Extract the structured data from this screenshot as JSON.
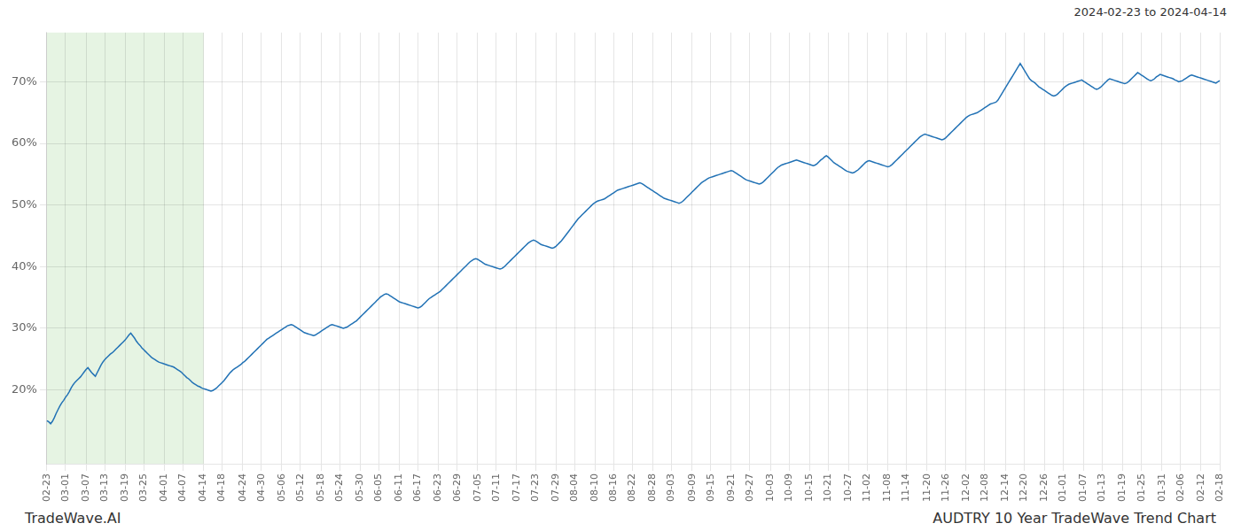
{
  "chart_data": {
    "type": "line",
    "title": "AUDTRY 10 Year TradeWave Trend Chart",
    "subtitle": "2024-02-23 to 2024-04-14",
    "annotations": [
      "TradeWave.AI"
    ],
    "color": "#2272b5",
    "grid": true,
    "ylim": [
      8,
      78
    ],
    "yticks": [
      {
        "value": 20,
        "label": "20%"
      },
      {
        "value": 30,
        "label": "30%"
      },
      {
        "value": 40,
        "label": "40%"
      },
      {
        "value": 50,
        "label": "50%"
      },
      {
        "value": 60,
        "label": "60%"
      },
      {
        "value": 70,
        "label": "70%"
      }
    ],
    "shaded_range": [
      "02-23",
      "04-14"
    ],
    "categories": [
      "02-23",
      null,
      null,
      null,
      null,
      null,
      null,
      null,
      null,
      null,
      "03-01",
      null,
      null,
      null,
      null,
      null,
      null,
      null,
      null,
      null,
      null,
      "03-07",
      null,
      null,
      null,
      null,
      null,
      null,
      null,
      null,
      null,
      "03-13",
      null,
      null,
      null,
      null,
      null,
      null,
      null,
      null,
      null,
      null,
      "03-19",
      null,
      null,
      null,
      null,
      null,
      null,
      null,
      null,
      null,
      "03-25",
      null,
      null,
      null,
      null,
      null,
      null,
      null,
      null,
      null,
      null,
      "04-01",
      null,
      null,
      null,
      null,
      null,
      null,
      null,
      null,
      null,
      "04-07",
      null,
      null,
      null,
      null,
      null,
      null,
      null,
      null,
      null,
      null,
      "04-14",
      null,
      null,
      null,
      null,
      null,
      null,
      null,
      null,
      null,
      "04-18",
      null,
      null,
      null,
      null,
      null,
      null,
      null,
      null,
      null,
      null,
      "04-24",
      null,
      null,
      null,
      null,
      null,
      null,
      null,
      null,
      null,
      "04-30",
      null,
      null,
      null,
      null,
      null,
      null,
      null,
      null,
      null,
      null,
      "05-06",
      null,
      null,
      null,
      null,
      null,
      null,
      null,
      null,
      null,
      "05-12",
      null,
      null,
      null,
      null,
      null,
      null,
      null,
      null,
      null,
      null,
      "05-18",
      null,
      null,
      null,
      null,
      null,
      null,
      null,
      null,
      null,
      "05-24",
      null,
      null,
      null,
      null,
      null,
      null,
      null,
      null,
      null,
      null,
      "05-30",
      null,
      null,
      null,
      null,
      null,
      null,
      null,
      null,
      null,
      "06-05",
      null,
      null,
      null,
      null,
      null,
      null,
      null,
      null,
      null,
      null,
      "06-11",
      null,
      null,
      null,
      null,
      null,
      null,
      null,
      null,
      null,
      "06-17",
      null,
      null,
      null,
      null,
      null,
      null,
      null,
      null,
      null,
      null,
      "06-23",
      null,
      null,
      null,
      null,
      null,
      null,
      null,
      null,
      null,
      "06-29",
      null,
      null,
      null,
      null,
      null,
      null,
      null,
      null,
      null,
      null,
      "07-05",
      null,
      null,
      null,
      null,
      null,
      null,
      null,
      null,
      null,
      "07-11",
      null,
      null,
      null,
      null,
      null,
      null,
      null,
      null,
      null,
      null,
      "07-17",
      null,
      null,
      null,
      null,
      null,
      null,
      null,
      null,
      null,
      "07-23",
      null,
      null,
      null,
      null,
      null,
      null,
      null,
      null,
      null,
      null,
      "07-29",
      null,
      null,
      null,
      null,
      null,
      null,
      null,
      null,
      null,
      "08-04",
      null,
      null,
      null,
      null,
      null,
      null,
      null,
      null,
      null,
      null,
      "08-10",
      null,
      null,
      null,
      null,
      null,
      null,
      null,
      null,
      null,
      "08-16",
      null,
      null,
      null,
      null,
      null,
      null,
      null,
      null,
      null,
      "08-22",
      null,
      null,
      null,
      null,
      null,
      null,
      null,
      null,
      null,
      null,
      "08-28",
      null,
      null,
      null,
      null,
      null,
      null,
      null,
      null,
      null,
      "09-03",
      null,
      null,
      null,
      null,
      null,
      null,
      null,
      null,
      null,
      null,
      "09-09",
      null,
      null,
      null,
      null,
      null,
      null,
      null,
      null,
      null,
      "09-15",
      null,
      null,
      null,
      null,
      null,
      null,
      null,
      null,
      null,
      null,
      "09-21",
      null,
      null,
      null,
      null,
      null,
      null,
      null,
      null,
      null,
      "09-27",
      null,
      null,
      null,
      null,
      null,
      null,
      null,
      null,
      null,
      null,
      "10-03",
      null,
      null,
      null,
      null,
      null,
      null,
      null,
      null,
      null,
      "10-09",
      null,
      null,
      null,
      null,
      null,
      null,
      null,
      null,
      null,
      null,
      "10-15",
      null,
      null,
      null,
      null,
      null,
      null,
      null,
      null,
      null,
      "10-21",
      null,
      null,
      null,
      null,
      null,
      null,
      null,
      null,
      null,
      null,
      "10-27",
      null,
      null,
      null,
      null,
      null,
      null,
      null,
      null,
      null,
      "11-02",
      null,
      null,
      null,
      null,
      null,
      null,
      null,
      null,
      null,
      null,
      "11-08",
      null,
      null,
      null,
      null,
      null,
      null,
      null,
      null,
      null,
      "11-14",
      null,
      null,
      null,
      null,
      null,
      null,
      null,
      null,
      null,
      null,
      "11-20",
      null,
      null,
      null,
      null,
      null,
      null,
      null,
      null,
      null,
      "11-26",
      null,
      null,
      null,
      null,
      null,
      null,
      null,
      null,
      null,
      null,
      "12-02",
      null,
      null,
      null,
      null,
      null,
      null,
      null,
      null,
      null,
      "12-08",
      null,
      null,
      null,
      null,
      null,
      null,
      null,
      null,
      null,
      null,
      "12-14",
      null,
      null,
      null,
      null,
      null,
      null,
      null,
      null,
      null,
      "12-20",
      null,
      null,
      null,
      null,
      null,
      null,
      null,
      null,
      null,
      null,
      "12-26",
      null,
      null,
      null,
      null,
      null,
      null,
      null,
      null,
      null,
      "01-01",
      null,
      null,
      null,
      null,
      null,
      null,
      null,
      null,
      null,
      null,
      "01-07",
      null,
      null,
      null,
      null,
      null,
      null,
      null,
      null,
      null,
      "01-13",
      null,
      null,
      null,
      null,
      null,
      null,
      null,
      null,
      null,
      null,
      "01-19",
      null,
      null,
      null,
      null,
      null,
      null,
      null,
      null,
      null,
      "01-25",
      null,
      null,
      null,
      null,
      null,
      null,
      null,
      null,
      null,
      null,
      "01-31",
      null,
      null,
      null,
      null,
      null,
      null,
      null,
      null,
      null,
      "02-06",
      null,
      null,
      null,
      null,
      null,
      null,
      null,
      null,
      null,
      null,
      "02-12",
      null,
      null,
      null,
      null,
      null,
      null,
      null,
      null,
      null,
      "02-18"
    ],
    "values": [
      15.0,
      14.8,
      14.5,
      14.9,
      15.5,
      16.2,
      16.8,
      17.4,
      17.9,
      18.3,
      18.8,
      19.2,
      19.7,
      20.3,
      20.8,
      21.2,
      21.5,
      21.8,
      22.1,
      22.5,
      22.9,
      23.3,
      23.6,
      23.2,
      22.8,
      22.5,
      22.2,
      22.8,
      23.4,
      24.0,
      24.5,
      24.9,
      25.2,
      25.5,
      25.8,
      26.0,
      26.3,
      26.6,
      26.9,
      27.2,
      27.5,
      27.8,
      28.1,
      28.5,
      28.9,
      29.2,
      28.8,
      28.4,
      27.9,
      27.5,
      27.2,
      26.8,
      26.5,
      26.2,
      25.9,
      25.6,
      25.3,
      25.1,
      24.9,
      24.7,
      24.5,
      24.4,
      24.3,
      24.2,
      24.1,
      24.0,
      23.9,
      23.8,
      23.7,
      23.5,
      23.3,
      23.1,
      22.9,
      22.6,
      22.3,
      22.0,
      21.8,
      21.5,
      21.2,
      21.0,
      20.8,
      20.6,
      20.5,
      20.3,
      20.2,
      20.1,
      20.0,
      19.9,
      19.8,
      19.9,
      20.1,
      20.3,
      20.6,
      20.9,
      21.2,
      21.5,
      21.9,
      22.3,
      22.7,
      23.0,
      23.3,
      23.5,
      23.7,
      23.9,
      24.1,
      24.4,
      24.6,
      24.9,
      25.2,
      25.5,
      25.8,
      26.1,
      26.4,
      26.7,
      27.0,
      27.3,
      27.6,
      27.9,
      28.2,
      28.4,
      28.6,
      28.8,
      29.0,
      29.2,
      29.4,
      29.6,
      29.8,
      30.0,
      30.2,
      30.4,
      30.5,
      30.6,
      30.5,
      30.3,
      30.1,
      29.9,
      29.7,
      29.5,
      29.3,
      29.2,
      29.1,
      29.0,
      28.9,
      28.8,
      28.9,
      29.1,
      29.3,
      29.5,
      29.7,
      29.9,
      30.1,
      30.3,
      30.5,
      30.6,
      30.5,
      30.4,
      30.3,
      30.2,
      30.1,
      30.0,
      30.1,
      30.2,
      30.4,
      30.6,
      30.8,
      31.0,
      31.2,
      31.5,
      31.8,
      32.1,
      32.4,
      32.7,
      33.0,
      33.3,
      33.6,
      33.9,
      34.2,
      34.5,
      34.8,
      35.1,
      35.3,
      35.5,
      35.6,
      35.5,
      35.3,
      35.1,
      34.9,
      34.7,
      34.5,
      34.3,
      34.2,
      34.1,
      34.0,
      33.9,
      33.8,
      33.7,
      33.6,
      33.5,
      33.4,
      33.3,
      33.4,
      33.6,
      33.9,
      34.2,
      34.5,
      34.8,
      35.0,
      35.2,
      35.4,
      35.6,
      35.8,
      36.0,
      36.3,
      36.6,
      36.9,
      37.2,
      37.5,
      37.8,
      38.1,
      38.4,
      38.7,
      39.0,
      39.3,
      39.6,
      39.9,
      40.2,
      40.5,
      40.8,
      41.0,
      41.2,
      41.3,
      41.2,
      41.0,
      40.8,
      40.6,
      40.4,
      40.3,
      40.2,
      40.1,
      40.0,
      39.9,
      39.8,
      39.7,
      39.6,
      39.7,
      39.9,
      40.2,
      40.5,
      40.8,
      41.1,
      41.4,
      41.7,
      42.0,
      42.3,
      42.6,
      42.9,
      43.2,
      43.5,
      43.8,
      44.0,
      44.2,
      44.3,
      44.2,
      44.0,
      43.8,
      43.6,
      43.5,
      43.4,
      43.3,
      43.2,
      43.1,
      43.0,
      43.1,
      43.3,
      43.6,
      43.9,
      44.2,
      44.6,
      45.0,
      45.4,
      45.8,
      46.2,
      46.6,
      47.0,
      47.4,
      47.8,
      48.1,
      48.4,
      48.7,
      49.0,
      49.3,
      49.6,
      49.9,
      50.2,
      50.4,
      50.6,
      50.7,
      50.8,
      50.9,
      51.0,
      51.2,
      51.4,
      51.6,
      51.8,
      52.0,
      52.2,
      52.4,
      52.5,
      52.6,
      52.7,
      52.8,
      52.9,
      53.0,
      53.1,
      53.2,
      53.3,
      53.4,
      53.5,
      53.6,
      53.5,
      53.3,
      53.1,
      52.9,
      52.7,
      52.5,
      52.3,
      52.1,
      51.9,
      51.7,
      51.5,
      51.3,
      51.1,
      51.0,
      50.9,
      50.8,
      50.7,
      50.6,
      50.5,
      50.4,
      50.3,
      50.4,
      50.6,
      50.9,
      51.2,
      51.5,
      51.8,
      52.1,
      52.4,
      52.7,
      53.0,
      53.3,
      53.6,
      53.8,
      54.0,
      54.2,
      54.4,
      54.5,
      54.6,
      54.7,
      54.8,
      54.9,
      55.0,
      55.1,
      55.2,
      55.3,
      55.4,
      55.5,
      55.6,
      55.5,
      55.3,
      55.1,
      54.9,
      54.7,
      54.5,
      54.3,
      54.1,
      54.0,
      53.9,
      53.8,
      53.7,
      53.6,
      53.5,
      53.4,
      53.5,
      53.7,
      54.0,
      54.3,
      54.6,
      54.9,
      55.2,
      55.5,
      55.8,
      56.1,
      56.3,
      56.5,
      56.6,
      56.7,
      56.8,
      56.9,
      57.0,
      57.1,
      57.2,
      57.3,
      57.2,
      57.1,
      57.0,
      56.9,
      56.8,
      56.7,
      56.6,
      56.5,
      56.4,
      56.5,
      56.7,
      57.0,
      57.3,
      57.5,
      57.8,
      58.0,
      57.8,
      57.5,
      57.2,
      56.9,
      56.7,
      56.5,
      56.3,
      56.1,
      55.9,
      55.7,
      55.5,
      55.4,
      55.3,
      55.2,
      55.3,
      55.5,
      55.7,
      56.0,
      56.3,
      56.6,
      56.9,
      57.1,
      57.2,
      57.1,
      57.0,
      56.9,
      56.8,
      56.7,
      56.6,
      56.5,
      56.4,
      56.3,
      56.2,
      56.3,
      56.5,
      56.8,
      57.1,
      57.4,
      57.7,
      58.0,
      58.3,
      58.6,
      58.9,
      59.2,
      59.5,
      59.8,
      60.1,
      60.4,
      60.7,
      61.0,
      61.2,
      61.4,
      61.5,
      61.4,
      61.3,
      61.2,
      61.1,
      61.0,
      60.9,
      60.8,
      60.7,
      60.6,
      60.7,
      60.9,
      61.2,
      61.5,
      61.8,
      62.1,
      62.4,
      62.7,
      63.0,
      63.3,
      63.6,
      63.9,
      64.2,
      64.4,
      64.6,
      64.7,
      64.8,
      64.9,
      65.0,
      65.2,
      65.4,
      65.6,
      65.8,
      66.0,
      66.2,
      66.4,
      66.5,
      66.6,
      66.7,
      67.0,
      67.5,
      68.0,
      68.5,
      69.0,
      69.5,
      70.0,
      70.5,
      71.0,
      71.5,
      72.0,
      72.5,
      73.0,
      72.5,
      72.0,
      71.5,
      71.0,
      70.5,
      70.2,
      70.0,
      69.8,
      69.5,
      69.2,
      69.0,
      68.8,
      68.6,
      68.4,
      68.2,
      68.0,
      67.8,
      67.7,
      67.8,
      68.0,
      68.3,
      68.6,
      68.9,
      69.2,
      69.4,
      69.6,
      69.7,
      69.8,
      69.9,
      70.0,
      70.1,
      70.2,
      70.3,
      70.1,
      69.9,
      69.7,
      69.5,
      69.3,
      69.1,
      68.9,
      68.8,
      68.9,
      69.1,
      69.4,
      69.7,
      70.0,
      70.3,
      70.5,
      70.4,
      70.3,
      70.2,
      70.1,
      70.0,
      69.9,
      69.8,
      69.7,
      69.8,
      70.0,
      70.3,
      70.6,
      70.9,
      71.2,
      71.5,
      71.3,
      71.1,
      70.9,
      70.7,
      70.5,
      70.3,
      70.2,
      70.3,
      70.5,
      70.8,
      71.0,
      71.2,
      71.1,
      71.0,
      70.9,
      70.8,
      70.7,
      70.6,
      70.5,
      70.3,
      70.2,
      70.0,
      70.1,
      70.2,
      70.4,
      70.6,
      70.8,
      71.0,
      71.1,
      71.0,
      70.9,
      70.8,
      70.7,
      70.6,
      70.5,
      70.4,
      70.3,
      70.2,
      70.1,
      70.0,
      69.9,
      69.8,
      70.0,
      70.2
    ]
  }
}
